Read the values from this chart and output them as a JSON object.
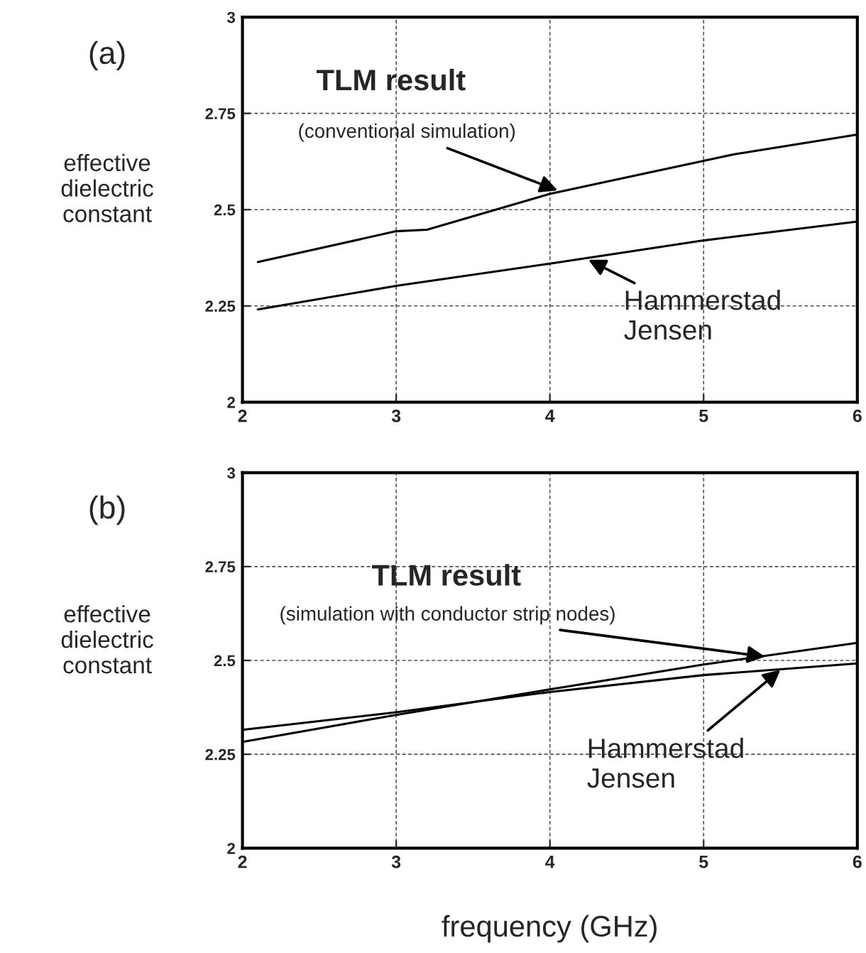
{
  "chart_data": [
    {
      "type": "line",
      "title": "(a)",
      "ylabel": "effective\ndielectric\nconstant",
      "series": [
        {
          "color": "#000000",
          "x": [
            2.1,
            3,
            3.2,
            4,
            5,
            5.2,
            6
          ],
          "values": [
            2.364,
            2.444,
            2.448,
            2.541,
            2.627,
            2.644,
            2.695
          ]
        },
        {
          "color": "#000000",
          "x": [
            2.1,
            3,
            4,
            5,
            6
          ],
          "values": [
            2.241,
            2.302,
            2.36,
            2.42,
            2.469
          ]
        }
      ],
      "xlim": [
        2,
        6
      ],
      "xticks": [
        2,
        3,
        4,
        5,
        6
      ],
      "ylim": [
        2,
        3
      ],
      "yticks": [
        2,
        {
          "value": 2.25,
          "label": "2.25"
        },
        {
          "value": 2.5,
          "label": "2.5"
        },
        {
          "value": 2.75,
          "label": "2.75"
        },
        3
      ],
      "grid": true,
      "marker": "none",
      "line_style": "solid",
      "annotations": [
        "TLM result",
        {
          "text": "(conventional simulation)",
          "x": 4.05,
          "y": 2.55
        },
        {
          "text": "Hammerstad\nJensen",
          "x": 4.25,
          "y": 2.37
        }
      ]
    },
    {
      "type": "line",
      "title": "(b)",
      "ylabel": "effective\ndielectric\nconstant",
      "xlabel": "frequency (GHz)",
      "series": [
        {
          "color": "#000000",
          "x": [
            2,
            3,
            4,
            5,
            6
          ],
          "values": [
            2.283,
            2.355,
            2.423,
            2.489,
            2.547
          ]
        },
        {
          "color": "#000000",
          "x": [
            2,
            3,
            4,
            5,
            6
          ],
          "values": [
            2.315,
            2.362,
            2.416,
            2.461,
            2.492
          ]
        }
      ],
      "xlim": [
        2,
        6
      ],
      "xticks": [
        2,
        3,
        4,
        5,
        6
      ],
      "ylim": [
        2,
        3
      ],
      "yticks": [
        2,
        {
          "value": 2.25,
          "label": "2.25"
        },
        {
          "value": 2.5,
          "label": "2.5"
        },
        {
          "value": 2.75,
          "label": "2.75"
        },
        3
      ],
      "grid": true,
      "marker": "none",
      "line_style": "solid",
      "annotations": [
        "TLM result",
        {
          "text": "(simulation with conductor strip nodes)",
          "x": 5.4,
          "y": 2.51
        },
        {
          "text": "Hammerstad\nJensen",
          "x": 5.5,
          "y": 2.475
        }
      ]
    }
  ]
}
